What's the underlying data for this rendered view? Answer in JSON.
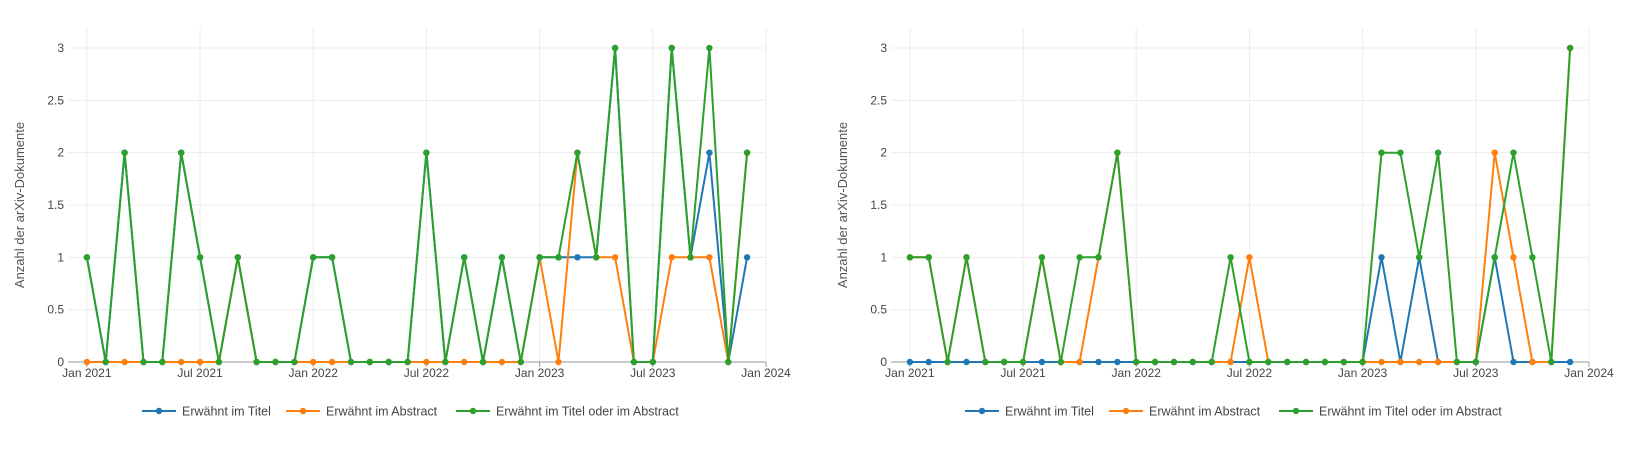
{
  "colors": {
    "title": "#1f77b4",
    "abstract": "#ff7f0e",
    "either": "#2ca02c",
    "grid": "#ececec",
    "axis": "#999999"
  },
  "chart_data": [
    {
      "type": "line",
      "xlabel": "",
      "ylabel": "Anzahl der arXiv-Dokumente",
      "ylim": [
        0,
        3
      ],
      "y_ticks": [
        "0",
        "0.5",
        "1",
        "1.5",
        "2",
        "2.5",
        "3"
      ],
      "xlim": [
        "2020-12",
        "2024-01"
      ],
      "x_ticks": [
        {
          "label": "Jan 2021",
          "date": "2021-01"
        },
        {
          "label": "Jul 2021",
          "date": "2021-07"
        },
        {
          "label": "Jan 2022",
          "date": "2022-01"
        },
        {
          "label": "Jul 2022",
          "date": "2022-07"
        },
        {
          "label": "Jan 2023",
          "date": "2023-01"
        },
        {
          "label": "Jul 2023",
          "date": "2023-07"
        },
        {
          "label": "Jan 2024",
          "date": "2024-01"
        }
      ],
      "grid": true,
      "legend_position": "bottom",
      "x": [
        "2021-01",
        "2021-02",
        "2021-03",
        "2021-04",
        "2021-05",
        "2021-06",
        "2021-07",
        "2021-08",
        "2021-09",
        "2021-10",
        "2021-11",
        "2021-12",
        "2022-01",
        "2022-02",
        "2022-03",
        "2022-04",
        "2022-05",
        "2022-06",
        "2022-07",
        "2022-08",
        "2022-09",
        "2022-10",
        "2022-11",
        "2022-12",
        "2023-01",
        "2023-02",
        "2023-03",
        "2023-04",
        "2023-05",
        "2023-06",
        "2023-07",
        "2023-08",
        "2023-09",
        "2023-10",
        "2023-11",
        "2023-12"
      ],
      "series": [
        {
          "name": "Erwähnt im Titel",
          "color_key": "title",
          "values": [
            1,
            0,
            2,
            0,
            0,
            2,
            1,
            0,
            1,
            0,
            0,
            0,
            1,
            1,
            0,
            0,
            0,
            0,
            2,
            0,
            1,
            0,
            1,
            0,
            1,
            1,
            1,
            1,
            3,
            0,
            0,
            3,
            1,
            2,
            0,
            1
          ]
        },
        {
          "name": "Erwähnt im Abstract",
          "color_key": "abstract",
          "values": [
            0,
            0,
            0,
            0,
            0,
            0,
            0,
            0,
            1,
            0,
            0,
            0,
            0,
            0,
            0,
            0,
            0,
            0,
            0,
            0,
            0,
            0,
            0,
            0,
            1,
            0,
            2,
            1,
            1,
            0,
            0,
            1,
            1,
            1,
            0,
            2
          ]
        },
        {
          "name": "Erwähnt im Titel oder im Abstract",
          "color_key": "either",
          "values": [
            1,
            0,
            2,
            0,
            0,
            2,
            1,
            0,
            1,
            0,
            0,
            0,
            1,
            1,
            0,
            0,
            0,
            0,
            2,
            0,
            1,
            0,
            1,
            0,
            1,
            1,
            2,
            1,
            3,
            0,
            0,
            3,
            1,
            3,
            0,
            2
          ]
        }
      ]
    },
    {
      "type": "line",
      "xlabel": "",
      "ylabel": "Anzahl der arXiv-Dokumente",
      "ylim": [
        0,
        3
      ],
      "y_ticks": [
        "0",
        "0.5",
        "1",
        "1.5",
        "2",
        "2.5",
        "3"
      ],
      "xlim": [
        "2020-12",
        "2024-01"
      ],
      "x_ticks": [
        {
          "label": "Jan 2021",
          "date": "2021-01"
        },
        {
          "label": "Jul 2021",
          "date": "2021-07"
        },
        {
          "label": "Jan 2022",
          "date": "2022-01"
        },
        {
          "label": "Jul 2022",
          "date": "2022-07"
        },
        {
          "label": "Jan 2023",
          "date": "2023-01"
        },
        {
          "label": "Jul 2023",
          "date": "2023-07"
        },
        {
          "label": "Jan 2024",
          "date": "2024-01"
        }
      ],
      "grid": true,
      "legend_position": "bottom",
      "x": [
        "2021-01",
        "2021-02",
        "2021-03",
        "2021-04",
        "2021-05",
        "2021-06",
        "2021-07",
        "2021-08",
        "2021-09",
        "2021-10",
        "2021-11",
        "2021-12",
        "2022-01",
        "2022-02",
        "2022-03",
        "2022-04",
        "2022-05",
        "2022-06",
        "2022-07",
        "2022-08",
        "2022-09",
        "2022-10",
        "2022-11",
        "2022-12",
        "2023-01",
        "2023-02",
        "2023-03",
        "2023-04",
        "2023-05",
        "2023-06",
        "2023-07",
        "2023-08",
        "2023-09",
        "2023-10",
        "2023-11",
        "2023-12"
      ],
      "series": [
        {
          "name": "Erwähnt im Titel",
          "color_key": "title",
          "values": [
            0,
            0,
            0,
            0,
            0,
            0,
            0,
            0,
            0,
            0,
            0,
            0,
            0,
            0,
            0,
            0,
            0,
            0,
            0,
            0,
            0,
            0,
            0,
            0,
            0,
            1,
            0,
            1,
            0,
            0,
            0,
            1,
            0,
            0,
            0,
            0
          ]
        },
        {
          "name": "Erwähnt im Abstract",
          "color_key": "abstract",
          "values": [
            1,
            1,
            0,
            1,
            0,
            0,
            0,
            1,
            0,
            0,
            1,
            2,
            0,
            0,
            0,
            0,
            0,
            0,
            1,
            0,
            0,
            0,
            0,
            0,
            0,
            0,
            0,
            0,
            0,
            0,
            0,
            2,
            1,
            0,
            0,
            3
          ]
        },
        {
          "name": "Erwähnt im Titel oder im Abstract",
          "color_key": "either",
          "values": [
            1,
            1,
            0,
            1,
            0,
            0,
            0,
            1,
            0,
            1,
            1,
            2,
            0,
            0,
            0,
            0,
            0,
            1,
            0,
            0,
            0,
            0,
            0,
            0,
            0,
            2,
            2,
            1,
            2,
            0,
            0,
            1,
            2,
            1,
            0,
            3
          ]
        }
      ]
    }
  ]
}
